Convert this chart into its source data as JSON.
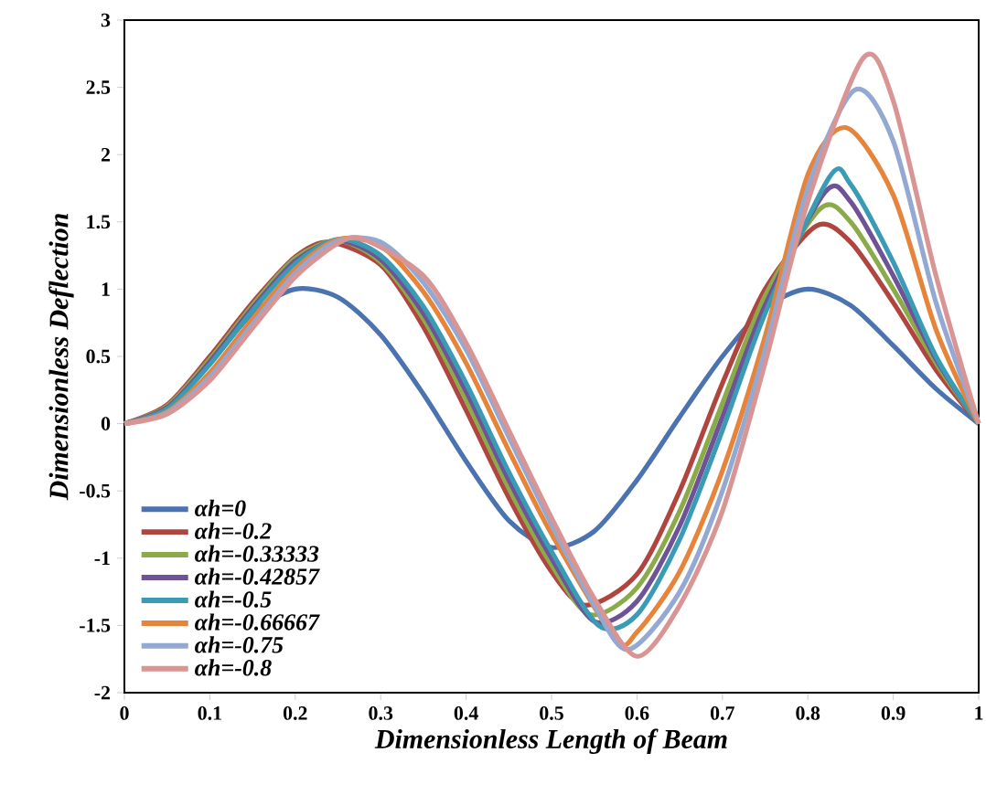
{
  "chart_data": {
    "type": "line",
    "xlabel": "Dimensionless Length of Beam",
    "ylabel": "Dimensionless Deflection",
    "xlim": [
      0,
      1
    ],
    "xticks": [
      0,
      0.1,
      0.2,
      0.3,
      0.4,
      0.5,
      0.6,
      0.7,
      0.8,
      0.9,
      1
    ],
    "ylim": [
      -2,
      3
    ],
    "yticks": [
      -2,
      -1.5,
      -1,
      -0.5,
      0,
      0.5,
      1,
      1.5,
      2,
      2.5,
      3
    ],
    "legend": "bottom left",
    "series": [
      {
        "name": "αh=0",
        "color": "#4a73b0",
        "x": [
          0,
          0.05,
          0.1,
          0.15,
          0.2,
          0.25,
          0.3,
          0.35,
          0.4,
          0.45,
          0.5,
          0.55,
          0.6,
          0.65,
          0.7,
          0.75,
          0.8,
          0.85,
          0.9,
          0.95,
          1
        ],
        "values": [
          0,
          0.12,
          0.45,
          0.82,
          1.0,
          0.94,
          0.66,
          0.22,
          -0.28,
          -0.72,
          -0.92,
          -0.8,
          -0.42,
          0.05,
          0.5,
          0.86,
          1.0,
          0.88,
          0.58,
          0.26,
          0
        ]
      },
      {
        "name": "αh=-0.2",
        "color": "#b04540",
        "x": [
          0,
          0.05,
          0.1,
          0.15,
          0.2,
          0.24,
          0.3,
          0.35,
          0.4,
          0.45,
          0.5,
          0.54,
          0.6,
          0.65,
          0.7,
          0.75,
          0.81,
          0.85,
          0.9,
          0.95,
          1
        ],
        "values": [
          0,
          0.14,
          0.5,
          0.9,
          1.24,
          1.35,
          1.18,
          0.72,
          0.1,
          -0.55,
          -1.1,
          -1.35,
          -1.12,
          -0.5,
          0.3,
          1.0,
          1.47,
          1.35,
          0.9,
          0.4,
          0
        ]
      },
      {
        "name": "αh=-0.33333",
        "color": "#8bab4a",
        "x": [
          0,
          0.05,
          0.1,
          0.15,
          0.2,
          0.25,
          0.3,
          0.35,
          0.4,
          0.45,
          0.5,
          0.545,
          0.6,
          0.65,
          0.7,
          0.75,
          0.815,
          0.85,
          0.9,
          0.95,
          1
        ],
        "values": [
          0,
          0.13,
          0.48,
          0.88,
          1.23,
          1.36,
          1.2,
          0.78,
          0.18,
          -0.48,
          -1.05,
          -1.42,
          -1.22,
          -0.65,
          0.15,
          0.95,
          1.6,
          1.5,
          1.0,
          0.45,
          0
        ]
      },
      {
        "name": "αh=-0.42857",
        "color": "#6e5396",
        "x": [
          0,
          0.05,
          0.1,
          0.15,
          0.2,
          0.25,
          0.3,
          0.35,
          0.4,
          0.45,
          0.5,
          0.55,
          0.6,
          0.65,
          0.7,
          0.75,
          0.82,
          0.85,
          0.9,
          0.95,
          1
        ],
        "values": [
          0,
          0.12,
          0.46,
          0.86,
          1.21,
          1.36,
          1.22,
          0.82,
          0.24,
          -0.42,
          -1.0,
          -1.47,
          -1.32,
          -0.76,
          0.05,
          0.88,
          1.72,
          1.65,
          1.1,
          0.48,
          0
        ]
      },
      {
        "name": "αh=-0.5",
        "color": "#3a9bb5",
        "x": [
          0,
          0.05,
          0.1,
          0.15,
          0.2,
          0.25,
          0.3,
          0.35,
          0.4,
          0.45,
          0.5,
          0.555,
          0.6,
          0.65,
          0.7,
          0.75,
          0.825,
          0.85,
          0.9,
          0.95,
          1
        ],
        "values": [
          0,
          0.11,
          0.44,
          0.84,
          1.19,
          1.37,
          1.25,
          0.87,
          0.3,
          -0.36,
          -0.95,
          -1.5,
          -1.42,
          -0.86,
          -0.05,
          0.82,
          1.83,
          1.78,
          1.2,
          0.5,
          0
        ]
      },
      {
        "name": "αh=-0.66667",
        "color": "#e5843a",
        "x": [
          0,
          0.05,
          0.1,
          0.15,
          0.2,
          0.25,
          0.3,
          0.35,
          0.4,
          0.45,
          0.5,
          0.575,
          0.6,
          0.65,
          0.7,
          0.75,
          0.8,
          0.845,
          0.9,
          0.95,
          1
        ],
        "values": [
          0,
          0.09,
          0.38,
          0.78,
          1.15,
          1.37,
          1.32,
          0.98,
          0.45,
          -0.2,
          -0.82,
          -1.6,
          -1.55,
          -1.1,
          -0.35,
          0.65,
          1.85,
          2.2,
          1.7,
          0.7,
          0
        ]
      },
      {
        "name": "αh=-0.75",
        "color": "#93a9d4",
        "x": [
          0,
          0.05,
          0.1,
          0.15,
          0.2,
          0.25,
          0.3,
          0.35,
          0.4,
          0.45,
          0.5,
          0.55,
          0.59,
          0.65,
          0.7,
          0.75,
          0.8,
          0.855,
          0.9,
          0.95,
          1
        ],
        "values": [
          0,
          0.08,
          0.35,
          0.74,
          1.12,
          1.36,
          1.35,
          1.05,
          0.55,
          -0.1,
          -0.75,
          -1.35,
          -1.68,
          -1.25,
          -0.5,
          0.55,
          1.75,
          2.48,
          2.1,
          0.9,
          0
        ]
      },
      {
        "name": "αh=-0.8",
        "color": "#d99594",
        "x": [
          0,
          0.05,
          0.1,
          0.15,
          0.2,
          0.25,
          0.28,
          0.35,
          0.4,
          0.45,
          0.5,
          0.55,
          0.6,
          0.65,
          0.7,
          0.75,
          0.8,
          0.865,
          0.9,
          0.95,
          1
        ],
        "values": [
          0,
          0.07,
          0.32,
          0.71,
          1.09,
          1.34,
          1.37,
          1.1,
          0.6,
          -0.05,
          -0.7,
          -1.3,
          -1.73,
          -1.35,
          -0.65,
          0.45,
          1.65,
          2.72,
          2.4,
          1.1,
          0
        ]
      }
    ]
  }
}
